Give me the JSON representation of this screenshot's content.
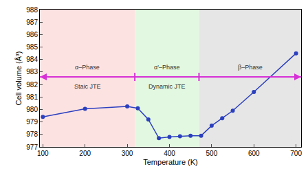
{
  "chart_data": {
    "type": "line",
    "xlabel": "Temperature (K)",
    "ylabel": "Cell volume (Å³)",
    "x": [
      100,
      200,
      300,
      325,
      350,
      375,
      400,
      425,
      450,
      475,
      500,
      525,
      550,
      600,
      700
    ],
    "values": [
      979.4,
      980.05,
      980.25,
      980.1,
      979.2,
      977.7,
      977.8,
      977.85,
      977.9,
      977.9,
      978.7,
      979.3,
      979.9,
      981.4,
      984.5
    ],
    "color": "#2b3fbf",
    "marker": "circle",
    "xlim": [
      93,
      712
    ],
    "xticks": [
      100,
      200,
      300,
      400,
      500,
      600,
      700
    ],
    "ylim": [
      977,
      988
    ],
    "yticks": [
      977,
      978,
      979,
      980,
      981,
      982,
      983,
      984,
      985,
      986,
      987,
      988
    ],
    "grid": false,
    "regions": [
      {
        "x0": 93,
        "x1": 318,
        "color": "#fde2e2",
        "phase": "α–Phase",
        "jte": "Staic JTE"
      },
      {
        "x0": 318,
        "x1": 470,
        "color": "#e2f8e0",
        "phase": "α'–Phase",
        "jte": "Dynamic JTE"
      },
      {
        "x0": 470,
        "x1": 712,
        "color": "#e6e6e6",
        "phase": "β–Phase",
        "jte": ""
      }
    ]
  }
}
